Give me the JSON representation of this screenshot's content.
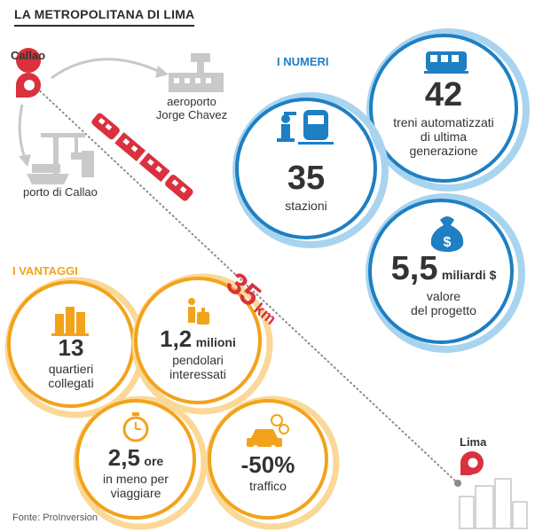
{
  "title": "LA METROPOLITANA DI LIMA",
  "places": {
    "callao": "Callao",
    "airport_line1": "aeroporto",
    "airport_line2": "Jorge Chavez",
    "port": "porto di Callao",
    "lima": "Lima"
  },
  "distance": {
    "value": "35",
    "unit": "km"
  },
  "numbers_section": {
    "heading": "I NUMERI",
    "trains": {
      "value": "42",
      "line1": "treni automatizzati",
      "line2": "di ultima",
      "line3": "generazione"
    },
    "stations": {
      "value": "35",
      "label": "stazioni"
    },
    "cost": {
      "value": "5,5",
      "unit": "miliardi $",
      "line1": "valore",
      "line2": "del progetto"
    }
  },
  "advantages_section": {
    "heading": "I VANTAGGI",
    "districts": {
      "value": "13",
      "line1": "quartieri",
      "line2": "collegati"
    },
    "commuters": {
      "value": "1,2",
      "unit": "milioni",
      "line1": "pendolari",
      "line2": "interessati"
    },
    "time": {
      "value": "2,5",
      "unit": "ore",
      "line1": "in meno per",
      "line2": "viaggiare"
    },
    "traffic": {
      "value": "-50%",
      "label": "traffico"
    }
  },
  "source": "Fonte: ProInversion",
  "colors": {
    "blue": "#1e7fc3",
    "light_blue": "#a9d4ef",
    "orange": "#f2a31b",
    "light_orange": "#fbd897",
    "red": "#d9313e",
    "gray": "#bdbdbd"
  }
}
